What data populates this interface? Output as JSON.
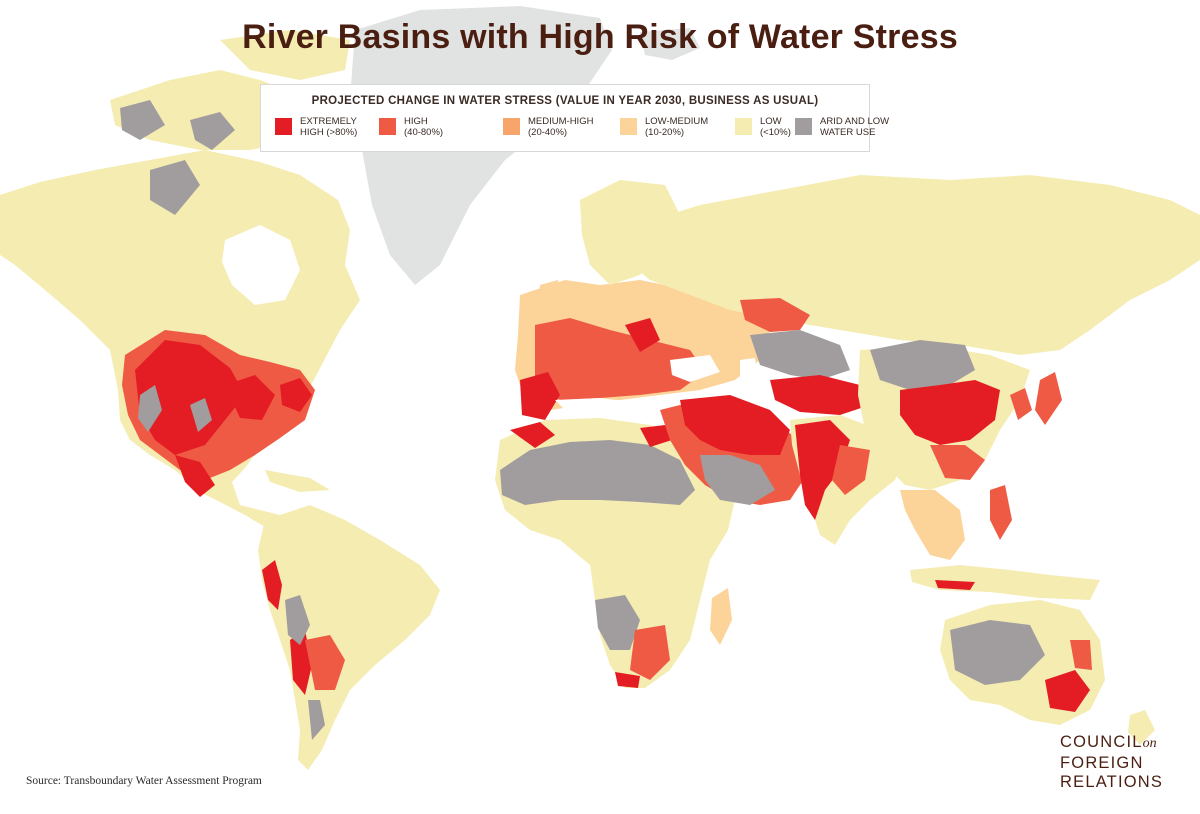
{
  "title": "River Basins with High Risk of Water Stress",
  "legend": {
    "heading": "PROJECTED CHANGE IN WATER STRESS (VALUE IN YEAR 2030, BUSINESS AS USUAL)",
    "items": [
      {
        "line1": "EXTREMELY",
        "line2": "HIGH (>80%)",
        "color": "#e31d23"
      },
      {
        "line1": "HIGH",
        "line2": "(40-80%)",
        "color": "#ef5a44"
      },
      {
        "line1": "MEDIUM-HIGH",
        "line2": "(20-40%)",
        "color": "#f7a56a"
      },
      {
        "line1": "LOW-MEDIUM",
        "line2": "(10-20%)",
        "color": "#fcd49a"
      },
      {
        "line1": "LOW",
        "line2": "(<10%)",
        "color": "#f5ecb2"
      },
      {
        "line1": "ARID AND LOW",
        "line2": "WATER USE",
        "color": "#a19d9e"
      }
    ]
  },
  "no_data_color": "#e1e2e2",
  "source": "Source: Transboundary Water Assessment Program",
  "logo": {
    "line1_main": "COUNCIL",
    "line1_small": "on",
    "line2": "FOREIGN",
    "line3": "RELATIONS"
  }
}
